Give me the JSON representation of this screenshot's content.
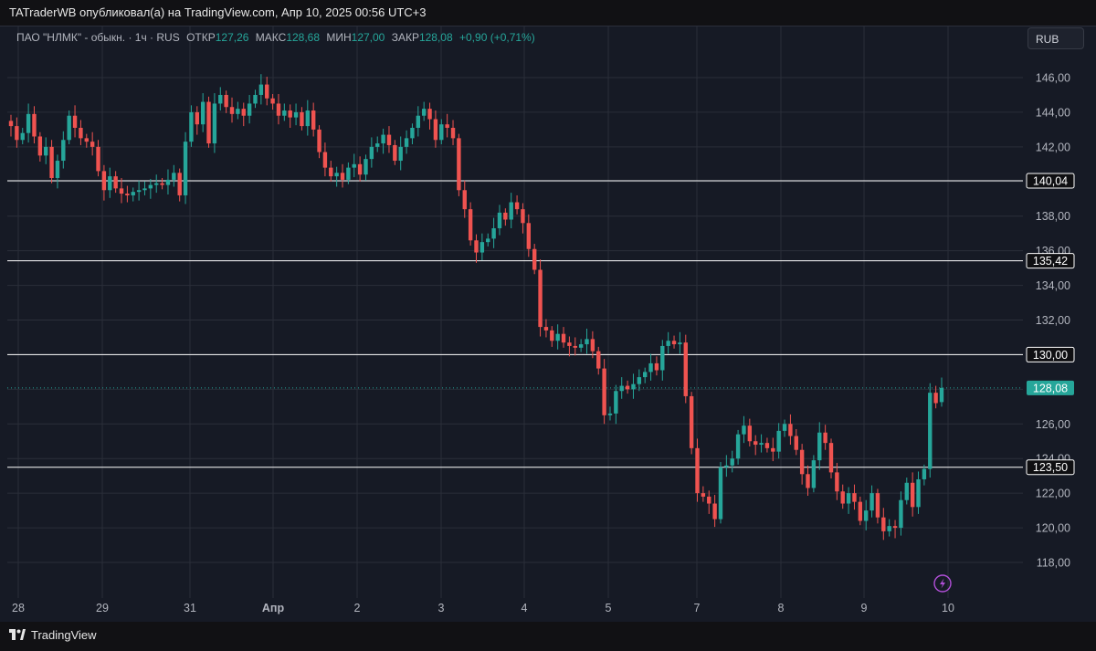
{
  "header": {
    "published_text": "TATraderWB опубликовал(а) на TradingView.com, Апр 10, 2025 00:56 UTC+3"
  },
  "legend": {
    "symbol": "ПАО \"НЛМК\" - обыкн. · 1ч · RUS",
    "open_label": "ОТКР",
    "open_value": "127,26",
    "high_label": "МАКС",
    "high_value": "128,68",
    "low_label": "МИН",
    "low_value": "127,00",
    "close_label": "ЗАКР",
    "close_value": "128,08",
    "change": "+0,90 (+0,71%)"
  },
  "currency_button": "RUB",
  "footer": {
    "brand": "TradingView"
  },
  "colors": {
    "up": "#26a69a",
    "down": "#ef5350",
    "background": "#161a25",
    "grid": "#2a2e39",
    "level_line": "#ffffff",
    "last_price": "#26a69a"
  },
  "chart_data": {
    "type": "candlestick",
    "ylim": [
      116.5,
      147.5
    ],
    "y_ticks": [
      "118,00",
      "120,00",
      "122,00",
      "124,00",
      "126,00",
      "128,00",
      "130,00",
      "132,00",
      "134,00",
      "136,00",
      "138,00",
      "140,00",
      "142,00",
      "144,00",
      "146,00"
    ],
    "x_labels": [
      "28",
      "29",
      "31",
      "Апр",
      "2",
      "3",
      "4",
      "5",
      "7",
      "8",
      "9",
      "10"
    ],
    "levels": [
      {
        "value": 140.04,
        "label": "140,04"
      },
      {
        "value": 135.42,
        "label": "135,42"
      },
      {
        "value": 130.0,
        "label": "130,00"
      },
      {
        "value": 123.5,
        "label": "123,50"
      }
    ],
    "last_price": {
      "value": 128.08,
      "label": "128,08"
    },
    "close": [
      143.2,
      142.4,
      142.8,
      143.9,
      142.6,
      141.5,
      142.0,
      140.2,
      141.2,
      142.4,
      143.8,
      143.1,
      142.5,
      142.3,
      142.0,
      140.6,
      139.5,
      140.3,
      139.6,
      139.3,
      139.2,
      139.4,
      139.5,
      139.6,
      139.8,
      139.9,
      139.8,
      140.1,
      140.5,
      139.2,
      142.3,
      144.0,
      143.3,
      144.6,
      142.2,
      144.5,
      145.0,
      144.3,
      143.9,
      144.2,
      143.8,
      144.5,
      145.0,
      145.6,
      144.8,
      144.5,
      143.8,
      144.1,
      143.7,
      144.0,
      143.2,
      144.1,
      143.0,
      141.7,
      140.8,
      140.3,
      140.5,
      140.1,
      140.8,
      141.0,
      140.4,
      141.3,
      142.0,
      142.2,
      142.7,
      142.1,
      141.2,
      142.0,
      142.5,
      143.1,
      143.8,
      144.2,
      143.6,
      142.4,
      143.3,
      143.1,
      142.5,
      139.5,
      138.4,
      136.6,
      135.9,
      136.5,
      136.7,
      137.3,
      138.2,
      137.8,
      138.8,
      138.4,
      137.6,
      136.1,
      134.9,
      131.6,
      131.4,
      130.8,
      131.2,
      130.7,
      130.5,
      130.4,
      130.6,
      130.9,
      130.2,
      129.2,
      126.5,
      126.6,
      127.9,
      128.2,
      128.0,
      128.3,
      128.7,
      129.0,
      129.5,
      129.1,
      130.5,
      130.8,
      130.6,
      130.7,
      127.6,
      124.6,
      122.0,
      121.8,
      121.4,
      120.5,
      123.5,
      123.6,
      124.0,
      125.4,
      125.9,
      125.0,
      124.8,
      124.9,
      124.6,
      124.4,
      125.6,
      126.0,
      125.3,
      124.5,
      123.1,
      122.3,
      123.9,
      125.5,
      124.9,
      123.2,
      122.1,
      121.4,
      122.0,
      121.5,
      120.4,
      121.0,
      122.0,
      120.6,
      119.8,
      120.1,
      120.0,
      121.6,
      122.6,
      121.2,
      122.8,
      123.4,
      127.8,
      127.2,
      128.08
    ]
  }
}
